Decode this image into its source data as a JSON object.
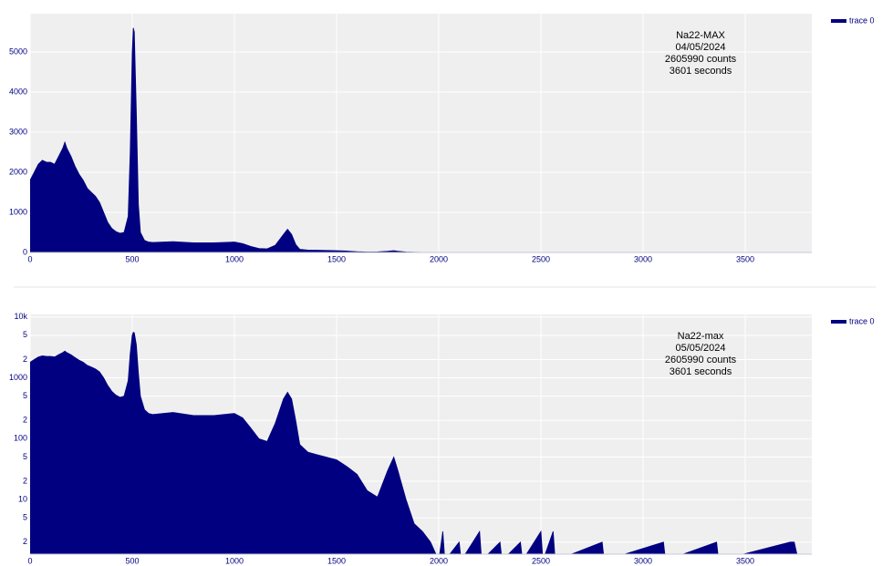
{
  "chart_data": [
    {
      "type": "area",
      "log_y": false,
      "grid": true,
      "legend": "top-right-outside",
      "annotation": [
        "Na22-MAX",
        "04/05/2024",
        "2605990 counts",
        "3601 seconds"
      ],
      "xlim": [
        0,
        3826
      ],
      "ylim": [
        0,
        5955
      ],
      "xticks": [
        0,
        500,
        1000,
        1500,
        2000,
        2500,
        3000,
        3500
      ],
      "yticks": [
        0,
        1000,
        2000,
        3000,
        4000,
        5000
      ],
      "x": [
        0,
        20,
        40,
        60,
        80,
        100,
        120,
        140,
        160,
        170,
        180,
        200,
        220,
        240,
        260,
        280,
        300,
        320,
        340,
        360,
        380,
        400,
        420,
        440,
        460,
        480,
        490,
        500,
        505,
        510,
        520,
        530,
        540,
        560,
        580,
        600,
        700,
        800,
        900,
        1000,
        1040,
        1080,
        1120,
        1160,
        1200,
        1240,
        1260,
        1280,
        1300,
        1320,
        1360,
        1400,
        1500,
        1550,
        1600,
        1650,
        1700,
        1750,
        1780,
        1800,
        1840,
        1880,
        1920,
        1960,
        2000,
        3800
      ],
      "series": [
        {
          "name": "trace 0",
          "color": "#000080",
          "values": [
            1800,
            2000,
            2200,
            2300,
            2250,
            2250,
            2200,
            2400,
            2600,
            2750,
            2600,
            2400,
            2150,
            1950,
            1800,
            1600,
            1500,
            1400,
            1250,
            1000,
            750,
            600,
            520,
            480,
            500,
            900,
            2500,
            5000,
            5600,
            5500,
            3500,
            1200,
            500,
            300,
            260,
            250,
            270,
            240,
            240,
            260,
            220,
            150,
            100,
            90,
            180,
            450,
            580,
            450,
            200,
            80,
            60,
            55,
            45,
            35,
            20,
            12,
            15,
            30,
            45,
            30,
            10,
            4,
            2,
            1,
            1,
            0
          ]
        }
      ]
    },
    {
      "type": "area",
      "log_y": true,
      "grid": true,
      "legend": "top-right-outside",
      "annotation": [
        "Na22-max",
        "05/05/2024",
        "2605990 counts",
        "3601 seconds"
      ],
      "xlim": [
        0,
        3826
      ],
      "ylim": [
        1.27,
        11000
      ],
      "xticks": [
        0,
        500,
        1000,
        1500,
        2000,
        2500,
        3000,
        3500
      ],
      "yticks": [
        {
          "value": 10000,
          "label": "10k"
        },
        {
          "value": 5000,
          "label": "5"
        },
        {
          "value": 2000,
          "label": "2"
        },
        1000,
        {
          "value": 500,
          "label": "5"
        },
        {
          "value": 200,
          "label": "2"
        },
        100,
        {
          "value": 50,
          "label": "5"
        },
        {
          "value": 20,
          "label": "2"
        },
        10,
        {
          "value": 5,
          "label": "5"
        },
        {
          "value": 2,
          "label": "2"
        }
      ],
      "x": [
        0,
        20,
        40,
        60,
        80,
        100,
        120,
        140,
        160,
        170,
        180,
        200,
        220,
        240,
        260,
        280,
        300,
        320,
        340,
        360,
        380,
        400,
        420,
        440,
        460,
        480,
        490,
        500,
        505,
        510,
        520,
        530,
        540,
        560,
        580,
        600,
        700,
        800,
        900,
        1000,
        1040,
        1080,
        1120,
        1160,
        1200,
        1240,
        1260,
        1280,
        1300,
        1320,
        1360,
        1400,
        1500,
        1550,
        1600,
        1650,
        1700,
        1750,
        1780,
        1800,
        1840,
        1880,
        1920,
        1960,
        2000,
        2020,
        2030,
        2100,
        2110,
        2200,
        2210,
        2300,
        2310,
        2400,
        2410,
        2500,
        2510,
        2560,
        2570,
        2800,
        2810,
        3100,
        3110,
        3360,
        3370,
        3720,
        3740,
        3760
      ],
      "series": [
        {
          "name": "trace 0",
          "color": "#000080",
          "values": [
            1800,
            2000,
            2200,
            2300,
            2250,
            2250,
            2200,
            2400,
            2600,
            2750,
            2600,
            2400,
            2150,
            1950,
            1800,
            1600,
            1500,
            1400,
            1250,
            1000,
            750,
            600,
            520,
            480,
            500,
            900,
            2500,
            5000,
            5600,
            5500,
            3500,
            1200,
            500,
            300,
            260,
            250,
            270,
            240,
            240,
            260,
            220,
            150,
            100,
            90,
            180,
            450,
            580,
            450,
            200,
            80,
            60,
            55,
            45,
            35,
            26,
            14,
            11,
            30,
            50,
            30,
            10,
            4,
            3,
            2,
            1,
            3,
            1,
            2,
            1,
            3,
            1,
            2,
            1,
            2,
            1,
            3,
            1,
            3,
            1,
            2,
            1,
            2,
            1,
            2,
            1,
            2,
            2,
            1
          ]
        }
      ]
    }
  ]
}
